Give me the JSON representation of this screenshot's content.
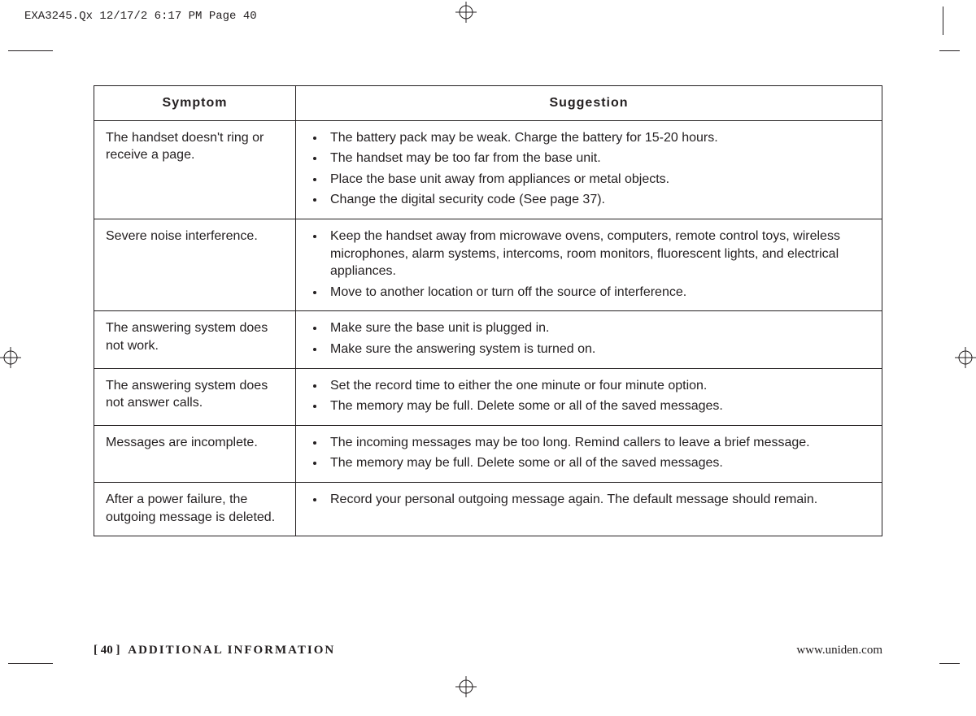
{
  "header_slug": "EXA3245.Qx  12/17/2  6:17 PM  Page 40",
  "table": {
    "headers": {
      "symptom": "Symptom",
      "suggestion": "Suggestion"
    },
    "rows": [
      {
        "symptom": "The handset doesn't ring or receive a page.",
        "suggestions": [
          "The battery pack may be weak. Charge the battery for 15-20 hours.",
          "The handset may be too far from the base unit.",
          "Place the base unit away from appliances or metal objects.",
          "Change the digital security code (See page 37)."
        ]
      },
      {
        "symptom": "Severe noise interference.",
        "suggestions": [
          "Keep the handset away from microwave ovens, computers, remote control toys, wireless microphones, alarm systems, intercoms, room monitors, fluorescent lights, and electrical appliances.",
          "Move to another location or turn off the source of interference."
        ]
      },
      {
        "symptom": "The answering system does not work.",
        "suggestions": [
          "Make sure the base unit is plugged in.",
          "Make sure the answering system is turned on."
        ]
      },
      {
        "symptom": "The answering system does not answer calls.",
        "suggestions": [
          "Set the record time to either the one minute or four minute option.",
          "The memory may be full. Delete some or all of the saved messages."
        ]
      },
      {
        "symptom": "Messages are incomplete.",
        "suggestions": [
          "The incoming messages may be too long. Remind callers to leave a brief message.",
          "The memory may be full. Delete some or all of the saved messages."
        ]
      },
      {
        "symptom": "After a power failure, the outgoing message is deleted.",
        "suggestions": [
          "Record your personal outgoing message again. The default message should remain."
        ]
      }
    ]
  },
  "footer": {
    "page_number": "[ 40 ]",
    "section": "ADDITIONAL INFORMATION",
    "url": "www.uniden.com"
  },
  "colors": {
    "text": "#231f20",
    "border": "#231f20",
    "background": "#ffffff"
  }
}
